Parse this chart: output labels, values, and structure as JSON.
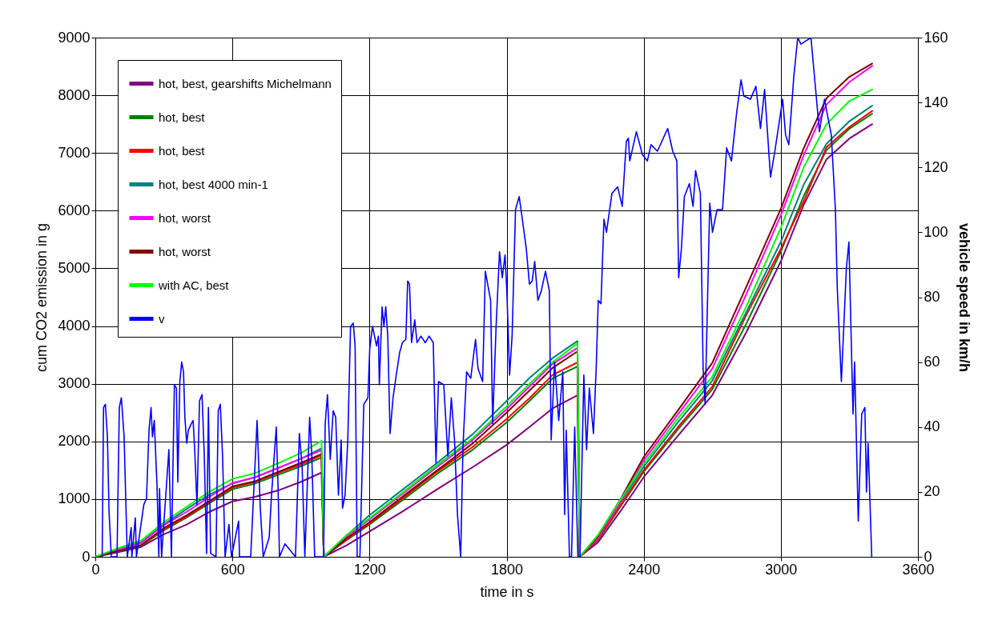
{
  "chart_data": {
    "type": "line",
    "xlabel": "time in s",
    "ylabel": "cum CO2 emission in g",
    "y2label": "vehicle speed in km/h",
    "xlim": [
      0,
      3600
    ],
    "xticks": [
      0,
      600,
      1200,
      1800,
      2400,
      3000,
      3600
    ],
    "ylim": [
      0,
      9000
    ],
    "yticks": [
      0,
      1000,
      2000,
      3000,
      4000,
      5000,
      6000,
      7000,
      8000,
      9000
    ],
    "y2lim": [
      0,
      160
    ],
    "y2ticks": [
      0,
      20,
      40,
      60,
      80,
      100,
      120,
      140,
      160
    ],
    "grid": true,
    "legend": "top left",
    "x": [
      0,
      100,
      200,
      300,
      400,
      500,
      600,
      700,
      800,
      900,
      990,
      1000,
      1100,
      1200,
      1350,
      1500,
      1650,
      1800,
      1900,
      2000,
      2110,
      2120,
      2200,
      2300,
      2400,
      2550,
      2700,
      2850,
      3000,
      3100,
      3200,
      3300,
      3400
    ],
    "series": [
      {
        "name": "hot, best, gearshifts Michelmann",
        "color": "#800080",
        "values": [
          0,
          80,
          170,
          390,
          560,
          780,
          960,
          1040,
          1150,
          1300,
          1460,
          0,
          200,
          440,
          800,
          1180,
          1550,
          1940,
          2250,
          2570,
          2800,
          0,
          250,
          800,
          1380,
          2100,
          2800,
          3900,
          5120,
          6100,
          6890,
          7250,
          7500
        ]
      },
      {
        "name": "hot, best",
        "color": "#008000",
        "values": [
          0,
          90,
          190,
          460,
          680,
          930,
          1170,
          1270,
          1420,
          1570,
          1720,
          0,
          290,
          560,
          1000,
          1450,
          1850,
          2330,
          2700,
          3090,
          3300,
          0,
          290,
          880,
          1470,
          2210,
          2900,
          4050,
          5290,
          6250,
          7050,
          7420,
          7680
        ]
      },
      {
        "name": "hot, best",
        "color": "#ff0000",
        "values": [
          0,
          100,
          200,
          480,
          700,
          950,
          1200,
          1300,
          1450,
          1600,
          1760,
          0,
          300,
          580,
          1030,
          1490,
          1900,
          2390,
          2750,
          3150,
          3370,
          0,
          300,
          900,
          1500,
          2250,
          2950,
          4200,
          5340,
          6160,
          7100,
          7450,
          7730
        ]
      },
      {
        "name": "hot, best 4000 min-1",
        "color": "#008080",
        "values": [
          0,
          130,
          250,
          560,
          830,
          1080,
          1270,
          1380,
          1540,
          1700,
          1880,
          0,
          370,
          720,
          1180,
          1640,
          2120,
          2700,
          3100,
          3440,
          3740,
          0,
          340,
          950,
          1560,
          2330,
          3050,
          4250,
          5460,
          6450,
          7160,
          7550,
          7820
        ]
      },
      {
        "name": "hot, worst",
        "color": "#ff00ff",
        "values": [
          0,
          130,
          240,
          550,
          780,
          1040,
          1280,
          1380,
          1540,
          1700,
          1850,
          0,
          350,
          650,
          1110,
          1570,
          2020,
          2560,
          2950,
          3340,
          3620,
          0,
          330,
          960,
          1670,
          2470,
          3260,
          4560,
          5920,
          6960,
          7840,
          8230,
          8510
        ]
      },
      {
        "name": "hot, worst",
        "color": "#800000",
        "values": [
          0,
          100,
          200,
          500,
          720,
          970,
          1220,
          1310,
          1470,
          1630,
          1780,
          0,
          320,
          600,
          1060,
          1510,
          1960,
          2500,
          2880,
          3270,
          3560,
          0,
          360,
          1010,
          1730,
          2540,
          3360,
          4690,
          6030,
          7080,
          7950,
          8320,
          8550
        ]
      },
      {
        "name": "with AC, best",
        "color": "#00ff00",
        "values": [
          0,
          150,
          280,
          600,
          870,
          1130,
          1350,
          1450,
          1620,
          1800,
          2010,
          0,
          380,
          670,
          1130,
          1600,
          2050,
          2610,
          3000,
          3370,
          3700,
          0,
          380,
          1000,
          1610,
          2400,
          3120,
          4350,
          5700,
          6750,
          7500,
          7900,
          8100
        ]
      },
      {
        "name": "v",
        "color": "#0000ff",
        "axis": "y2",
        "x": [
          30,
          36,
          44,
          53,
          60,
          70,
          95,
          105,
          114,
          126,
          135,
          140,
          157,
          160,
          175,
          180,
          212,
          224,
          235,
          244,
          250,
          258,
          270,
          278,
          281,
          290,
          322,
          333,
          346,
          355,
          361,
          370,
          378,
          386,
          392,
          400,
          407,
          420,
          428,
          435,
          445,
          456,
          467,
          477,
          487,
          495,
          505,
          528,
          538,
          547,
          557,
          568,
          585,
          596,
          627,
          631,
          680,
          708,
          722,
          735,
          761,
          772,
          792,
          800,
          806,
          830,
          876,
          893,
          905,
          917,
          938,
          947,
          960,
          999,
          1006,
          1016,
          1028,
          1041,
          1052,
          1064,
          1076,
          1082,
          1093,
          1105,
          1117,
          1129,
          1137,
          1146,
          1158,
          1175,
          1193,
          1201,
          1213,
          1231,
          1239,
          1243,
          1255,
          1263,
          1271,
          1280,
          1290,
          1303,
          1315,
          1332,
          1344,
          1359,
          1367,
          1375,
          1384,
          1398,
          1408,
          1425,
          1444,
          1461,
          1479,
          1491,
          1502,
          1525,
          1543,
          1558,
          1572,
          1585,
          1599,
          1609,
          1625,
          1643,
          1664,
          1675,
          1695,
          1707,
          1730,
          1739,
          1754,
          1769,
          1781,
          1793,
          1801,
          1813,
          1824,
          1839,
          1855,
          1867,
          1886,
          1900,
          1912,
          1923,
          1937,
          1952,
          1970,
          1987,
          1995,
          2010,
          2028,
          2046,
          2054,
          2061,
          2075,
          2084,
          2098,
          2112,
          2121,
          2138,
          2150,
          2162,
          2180,
          2192,
          2201,
          2213,
          2226,
          2237,
          2261,
          2286,
          2306,
          2324,
          2333,
          2339,
          2368,
          2394,
          2416,
          2432,
          2460,
          2505,
          2527,
          2545,
          2553,
          2565,
          2578,
          2600,
          2616,
          2627,
          2648,
          2660,
          2669,
          2689,
          2701,
          2721,
          2745,
          2763,
          2784,
          2807,
          2826,
          2838,
          2867,
          2891,
          2911,
          2929,
          2955,
          2974,
          3008,
          3021,
          3035,
          3057,
          3074,
          3088,
          3132,
          3169,
          3191,
          3221,
          3239,
          3247,
          3265,
          3287,
          3298,
          3316,
          3323,
          3339,
          3354,
          3368,
          3375,
          3382,
          3398
        ],
        "values": [
          0,
          46,
          47,
          37,
          14,
          0,
          0,
          46,
          49,
          37,
          13,
          0,
          9,
          0,
          12,
          0,
          16,
          18,
          39,
          46,
          37,
          42,
          22,
          0,
          21,
          0,
          33,
          0,
          53,
          52,
          23,
          54,
          60,
          57,
          43,
          35,
          39,
          41,
          42,
          33,
          16,
          48,
          50,
          31,
          1,
          46,
          1,
          0,
          45,
          47,
          31,
          0,
          10,
          0,
          11,
          0,
          0,
          42,
          15,
          0,
          6,
          20,
          40,
          21,
          0,
          4,
          0,
          38,
          28,
          0,
          43,
          32,
          0,
          0,
          41,
          50,
          30,
          45,
          43,
          19,
          36,
          15,
          19,
          36,
          71,
          72,
          65,
          0,
          0,
          47,
          49,
          64,
          71,
          65,
          68,
          53,
          77,
          71,
          77,
          68,
          38,
          49,
          55,
          63,
          66,
          67,
          85,
          84,
          66,
          73,
          66,
          68,
          66,
          68,
          66,
          29,
          54,
          53,
          31,
          49,
          36,
          13,
          0,
          34,
          57,
          55,
          67,
          58,
          54,
          88,
          79,
          41,
          71,
          94,
          86,
          93,
          82,
          56,
          68,
          107,
          111,
          105,
          95,
          84,
          85,
          91,
          79,
          82,
          88,
          82,
          36,
          60,
          42,
          57,
          13,
          39,
          0,
          0,
          40,
          0,
          0,
          56,
          33,
          52,
          38,
          58,
          79,
          78,
          104,
          100,
          112,
          114,
          108,
          128,
          129,
          122,
          131,
          124,
          122,
          127,
          125,
          132,
          125,
          122,
          86,
          95,
          111,
          115,
          108,
          119,
          112,
          58,
          47,
          109,
          100,
          107,
          107,
          126,
          122,
          137,
          147,
          142,
          141,
          145,
          132,
          144,
          117,
          125,
          141,
          130,
          127,
          148,
          160,
          158,
          160,
          131,
          141,
          130,
          107,
          83,
          54,
          89,
          97,
          44,
          60,
          11,
          44,
          46,
          20,
          35,
          0
        ]
      }
    ]
  }
}
